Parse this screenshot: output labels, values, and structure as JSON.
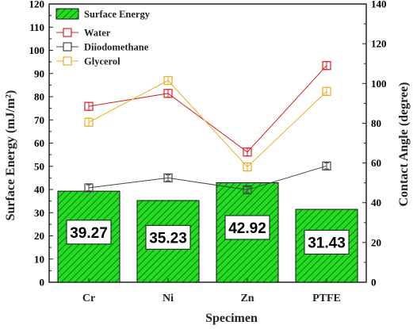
{
  "chart_data": {
    "type": "bar",
    "categories": [
      "Cr",
      "Ni",
      "Zn",
      "PTFE"
    ],
    "xlabel": "Specimen",
    "ylabel_left": "Surface Energy (mJ/m²)",
    "ylabel_right": "Contact Angle (degree)",
    "y_left_lim": [
      0,
      120
    ],
    "y_left_ticks": [
      0,
      10,
      20,
      30,
      40,
      50,
      60,
      70,
      80,
      90,
      100,
      110,
      120
    ],
    "y_right_lim": [
      0,
      140
    ],
    "y_right_ticks": [
      0,
      20,
      40,
      60,
      80,
      100,
      120,
      140
    ],
    "bars": {
      "name": "Surface Energy",
      "axis": "left",
      "values": [
        39.27,
        35.23,
        42.92,
        31.43
      ],
      "labels": [
        "39.27",
        "35.23",
        "42.92",
        "31.43"
      ],
      "color": "#22dd22"
    },
    "series": [
      {
        "name": "Water",
        "axis": "right",
        "color": "#d42020",
        "values": [
          88.5,
          95.0,
          65.5,
          109.0
        ],
        "err": [
          2,
          2,
          2,
          2
        ]
      },
      {
        "name": "Diiodomethane",
        "axis": "right",
        "color": "#444444",
        "values": [
          47.5,
          52.5,
          46.5,
          58.5
        ],
        "err": [
          1.5,
          1.5,
          1.5,
          1.5
        ]
      },
      {
        "name": "Glycerol",
        "axis": "right",
        "color": "#e6b020",
        "values": [
          80.5,
          101.5,
          58.0,
          96.0
        ],
        "err": [
          2,
          2,
          2,
          2
        ]
      }
    ],
    "legend": {
      "placement": "top-left"
    },
    "grid": false
  }
}
